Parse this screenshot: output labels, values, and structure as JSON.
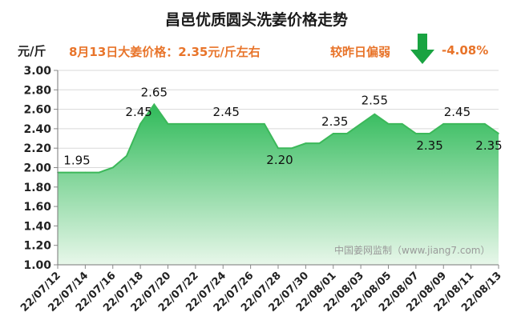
{
  "title": "昌邑优质圆头洗姜价格走势",
  "unit_label": "元/斤",
  "price_info": "8月13日大姜价格：2.35元/斤左右",
  "compare_label": "较昨日偏弱",
  "change_value": "-4.08%",
  "watermark": "中国姜网监制（www.jiang7.com）",
  "colors": {
    "area_top": "#2fba59",
    "area_bottom": "#e8f7ea",
    "line": "#3cb85a",
    "accent": "#e8742a",
    "arrow": "#19a341",
    "grid": "#d9d9d9"
  },
  "arrow_icon": "down-arrow-icon",
  "chart_data": {
    "type": "area",
    "title": "昌邑优质圆头洗姜价格走势",
    "ylabel": "元/斤",
    "ylim": [
      1.0,
      3.0
    ],
    "yticks": [
      "1.00",
      "1.20",
      "1.40",
      "1.60",
      "1.80",
      "2.00",
      "2.20",
      "2.40",
      "2.60",
      "2.80",
      "3.00"
    ],
    "grid": true,
    "x_tick_labels": [
      "22/07/12",
      "22/07/14",
      "22/07/16",
      "22/07/18",
      "22/07/20",
      "22/07/22",
      "22/07/24",
      "22/07/26",
      "22/07/28",
      "22/07/30",
      "22/08/01",
      "22/08/03",
      "22/08/05",
      "22/08/07",
      "22/08/09",
      "22/08/11",
      "22/08/13"
    ],
    "series": [
      {
        "x": [
          "22/07/12",
          "22/07/13",
          "22/07/14",
          "22/07/15",
          "22/07/16",
          "22/07/17",
          "22/07/18",
          "22/07/19",
          "22/07/20",
          "22/07/21",
          "22/07/22",
          "22/07/23",
          "22/07/24",
          "22/07/25",
          "22/07/26",
          "22/07/27",
          "22/07/28",
          "22/07/29",
          "22/07/30",
          "22/07/31",
          "22/08/01",
          "22/08/02",
          "22/08/03",
          "22/08/04",
          "22/08/05",
          "22/08/06",
          "22/08/07",
          "22/08/08",
          "22/08/09",
          "22/08/10",
          "22/08/11",
          "22/08/12",
          "22/08/13"
        ],
        "values": [
          1.95,
          1.95,
          1.95,
          1.95,
          2.0,
          2.12,
          2.45,
          2.65,
          2.45,
          2.45,
          2.45,
          2.45,
          2.45,
          2.45,
          2.45,
          2.45,
          2.2,
          2.2,
          2.25,
          2.25,
          2.35,
          2.35,
          2.45,
          2.55,
          2.45,
          2.45,
          2.35,
          2.35,
          2.45,
          2.45,
          2.45,
          2.45,
          2.35
        ]
      }
    ],
    "data_labels": [
      {
        "index": 0,
        "text": "1.95"
      },
      {
        "index": 6,
        "text": "2.45"
      },
      {
        "index": 7,
        "text": "2.65"
      },
      {
        "index": 12,
        "text": "2.45"
      },
      {
        "index": 16,
        "text": "2.20"
      },
      {
        "index": 20,
        "text": "2.35"
      },
      {
        "index": 23,
        "text": "2.55"
      },
      {
        "index": 27,
        "text": "2.35"
      },
      {
        "index": 29,
        "text": "2.45"
      },
      {
        "index": 32,
        "text": "2.35"
      }
    ]
  }
}
